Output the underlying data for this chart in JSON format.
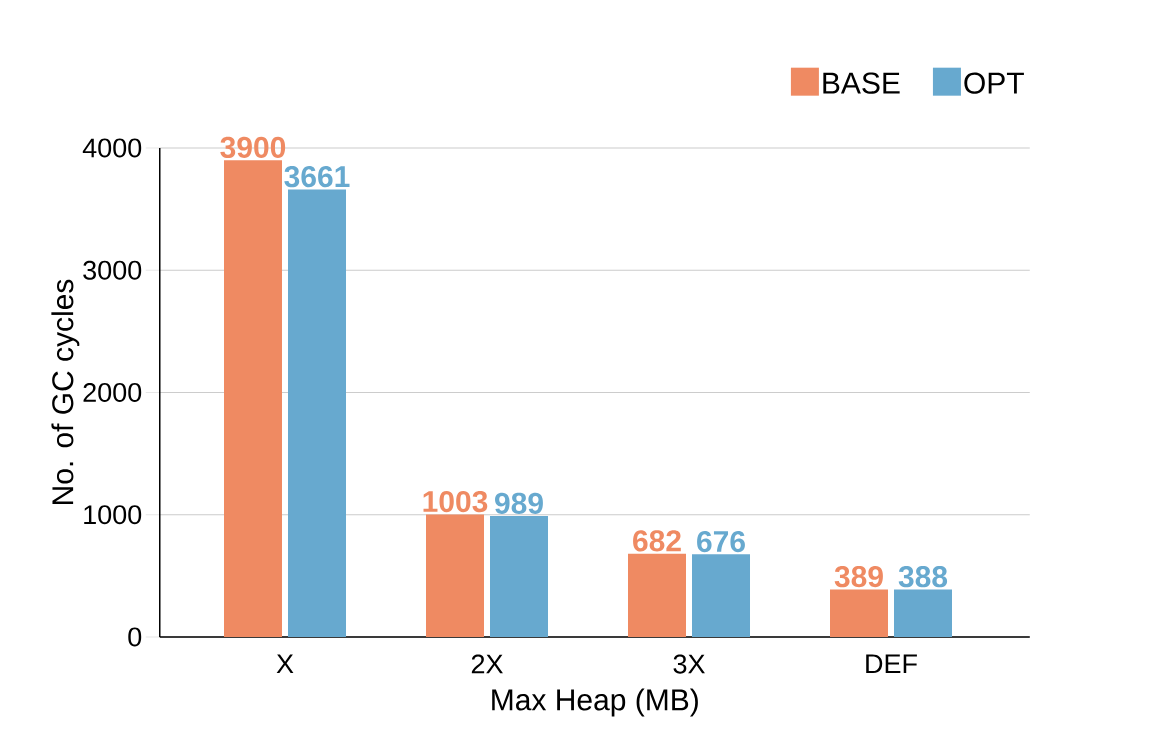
{
  "chart_data": {
    "type": "bar",
    "xlabel": "Max Heap (MB)",
    "ylabel": "No. of GC cycles",
    "categories": [
      "X",
      "2X",
      "3X",
      "DEF"
    ],
    "series": [
      {
        "name": "BASE",
        "color": "#ef8a62",
        "values": [
          3900,
          1003,
          682,
          389
        ]
      },
      {
        "name": "OPT",
        "color": "#67a9cf",
        "values": [
          3661,
          989,
          676,
          388
        ]
      }
    ],
    "ylim": [
      0,
      4000
    ],
    "yticks": [
      0,
      1000,
      2000,
      3000,
      4000
    ],
    "grid": "y",
    "legend": "top right",
    "data_labels": true
  }
}
